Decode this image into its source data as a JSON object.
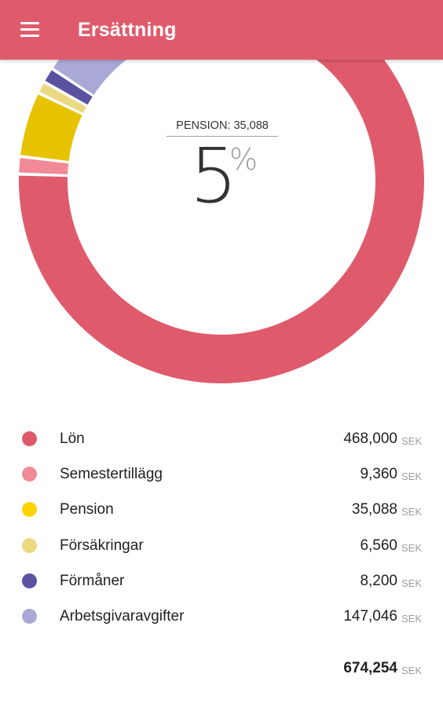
{
  "appbar": {
    "title": "Ersättning",
    "menu_icon": "hamburger-menu-icon",
    "color": "#df5b6c"
  },
  "center": {
    "label": "PENSION: 35,088",
    "percent": "5",
    "percent_sign": "%"
  },
  "currency": "SEK",
  "items": [
    {
      "label": "Lön",
      "value": "468,000",
      "unit": "SEK",
      "amount": 468000,
      "color": "#df5b6c"
    },
    {
      "label": "Semestertillägg",
      "value": "9,360",
      "unit": "SEK",
      "amount": 9360,
      "color": "#f08a96"
    },
    {
      "label": "Pension",
      "value": "35,088",
      "unit": "SEK",
      "amount": 35088,
      "color": "#e6c200",
      "dot_color": "#ffd400"
    },
    {
      "label": "Försäkringar",
      "value": "6,560",
      "unit": "SEK",
      "amount": 6560,
      "color": "#ead980"
    },
    {
      "label": "Förmåner",
      "value": "8,200",
      "unit": "SEK",
      "amount": 8200,
      "color": "#5a52a0"
    },
    {
      "label": "Arbetsgivaravgifter",
      "value": "147,046",
      "unit": "SEK",
      "amount": 147046,
      "color": "#aaa8d6"
    }
  ],
  "total": {
    "value": "674,254",
    "unit": "SEK"
  },
  "chart_data": {
    "type": "pie",
    "categories": [
      "Lön",
      "Semestertillägg",
      "Pension",
      "Försäkringar",
      "Förmåner",
      "Arbetsgivaravgifter"
    ],
    "values": [
      468000,
      9360,
      35088,
      6560,
      8200,
      147046
    ],
    "colors": [
      "#df5b6c",
      "#f08a96",
      "#e6c200",
      "#ead980",
      "#5a52a0",
      "#aaa8d6"
    ],
    "selected": "Pension",
    "style": "donut"
  }
}
